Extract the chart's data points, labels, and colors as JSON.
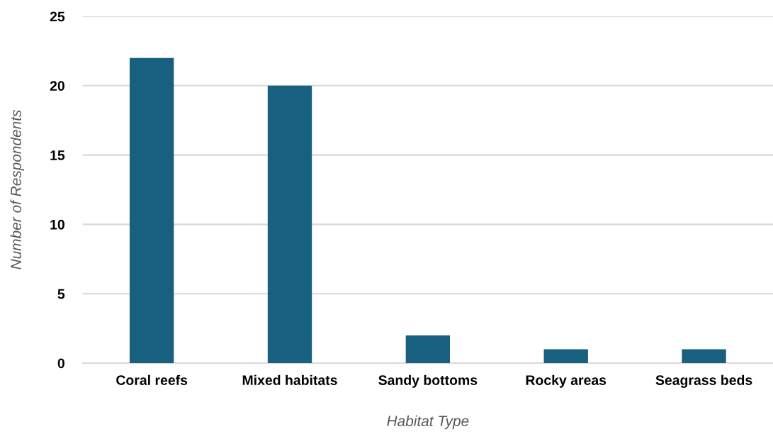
{
  "chart_data": {
    "type": "bar",
    "xlabel": "Habitat Type",
    "ylabel": "Number of Respondents",
    "categories": [
      "Coral reefs",
      "Mixed habitats",
      "Sandy bottoms",
      "Rocky areas",
      "Seagrass beds"
    ],
    "values": [
      22,
      20,
      2,
      1,
      1
    ],
    "color": "#17607f",
    "ylim": [
      0,
      25
    ],
    "yticks": [
      0,
      5,
      10,
      15,
      20,
      25
    ],
    "grid": "y",
    "legend": false
  }
}
